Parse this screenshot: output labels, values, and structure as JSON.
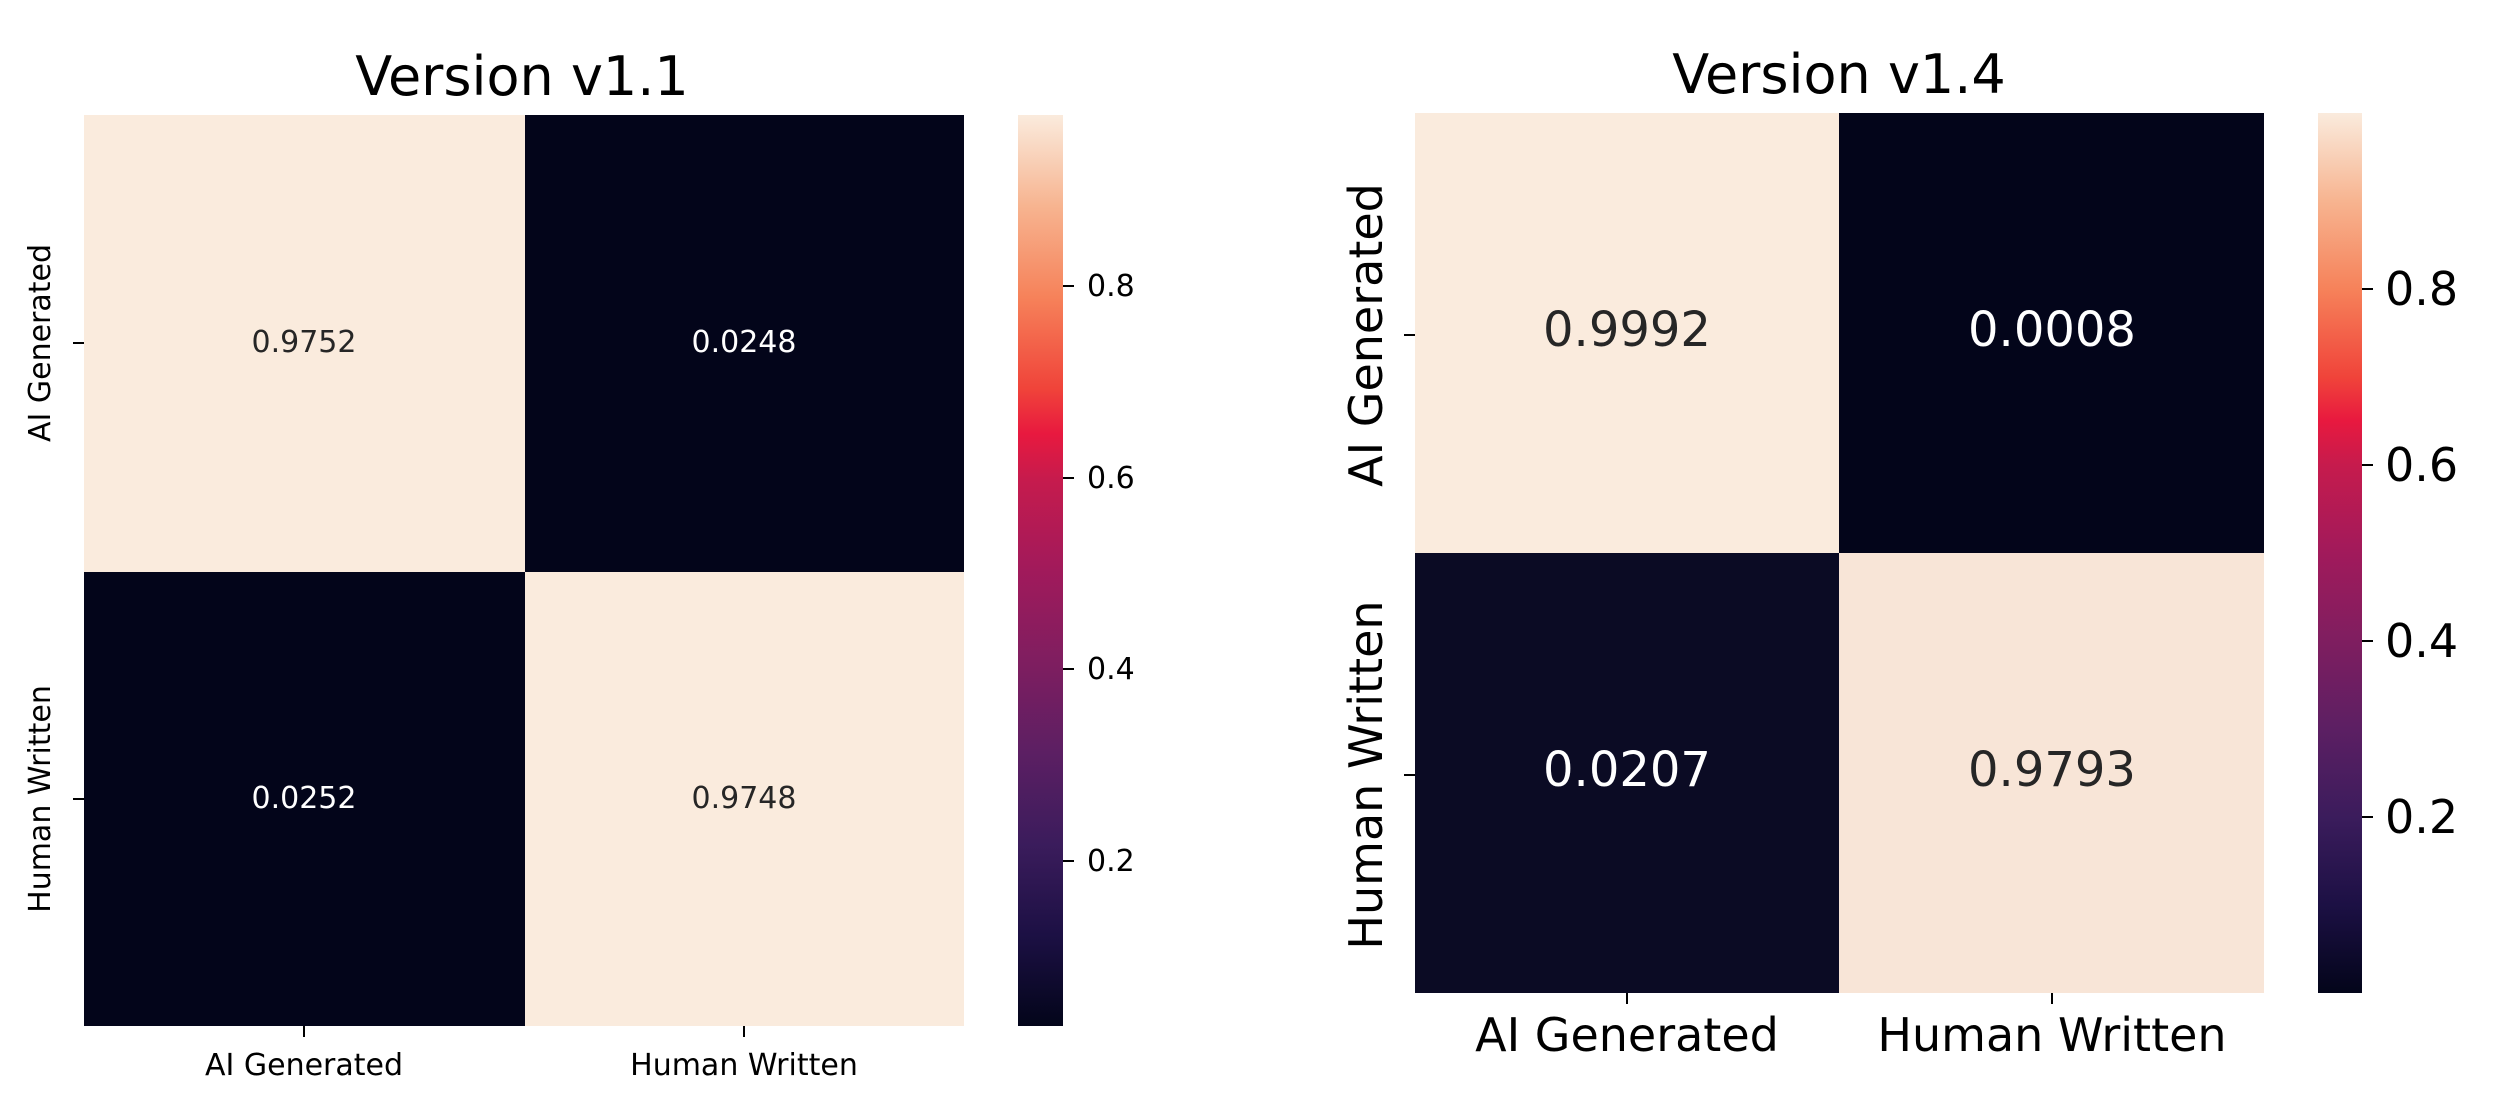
{
  "chart_data": [
    {
      "type": "heatmap",
      "title": "Version v1.1",
      "x_categories": [
        "AI Generated",
        "Human Written"
      ],
      "y_categories": [
        "AI Generated",
        "Human Written"
      ],
      "values": [
        [
          0.9752,
          0.0248
        ],
        [
          0.0252,
          0.9748
        ]
      ],
      "value_labels": [
        [
          "0.9752",
          "0.0248"
        ],
        [
          "0.0252",
          "0.9748"
        ]
      ],
      "colormap": "rocket",
      "colorbar": {
        "ticks": [
          0.2,
          0.4,
          0.6,
          0.8
        ],
        "tick_labels": [
          "0.2",
          "0.4",
          "0.6",
          "0.8"
        ],
        "range": [
          0.0248,
          0.9752
        ]
      }
    },
    {
      "type": "heatmap",
      "title": "Version v1.4",
      "x_categories": [
        "AI Generated",
        "Human Written"
      ],
      "y_categories": [
        "AI Generated",
        "Human Written"
      ],
      "values": [
        [
          0.9992,
          0.0008
        ],
        [
          0.0207,
          0.9793
        ]
      ],
      "value_labels": [
        [
          "0.9992",
          "0.0008"
        ],
        [
          "0.0207",
          "0.9793"
        ]
      ],
      "colormap": "rocket",
      "colorbar": {
        "ticks": [
          0.2,
          0.4,
          0.6,
          0.8
        ],
        "tick_labels": [
          "0.2",
          "0.4",
          "0.6",
          "0.8"
        ],
        "range": [
          0.0008,
          0.9992
        ]
      }
    }
  ],
  "colors": {
    "low": "#03051a",
    "high": "#faebdd",
    "text_on_light": "#262626",
    "text_on_dark": "#ffffff"
  }
}
